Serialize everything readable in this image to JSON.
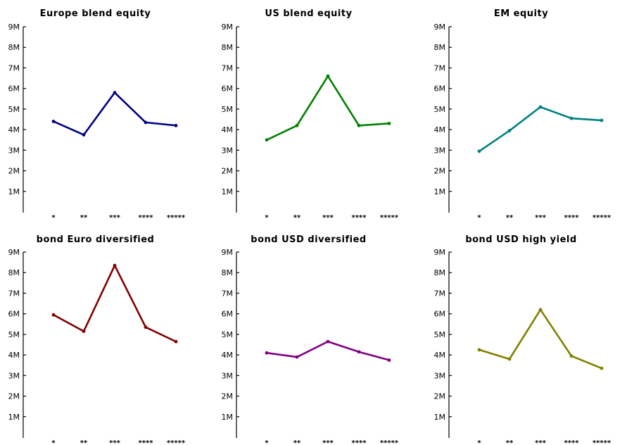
{
  "chart_data": [
    {
      "type": "line",
      "title": "Europe blend equity",
      "categories": [
        "*",
        "**",
        "***",
        "****",
        "*****"
      ],
      "series": [
        {
          "values": [
            4.4,
            3.75,
            5.8,
            4.35,
            4.2
          ],
          "color": "#000080"
        }
      ],
      "ylim": [
        0,
        9
      ],
      "yticks": [
        1,
        2,
        3,
        4,
        5,
        6,
        7,
        8,
        9
      ],
      "ytick_labels": [
        "1M",
        "2M",
        "3M",
        "4M",
        "5M",
        "6M",
        "7M",
        "8M",
        "9M"
      ],
      "xlabel": "",
      "ylabel": "",
      "grid": false
    },
    {
      "type": "line",
      "title": "US blend equity",
      "categories": [
        "*",
        "**",
        "***",
        "****",
        "*****"
      ],
      "series": [
        {
          "values": [
            3.5,
            4.2,
            6.6,
            4.2,
            4.3
          ],
          "color": "#008000"
        }
      ],
      "ylim": [
        0,
        9
      ],
      "yticks": [
        1,
        2,
        3,
        4,
        5,
        6,
        7,
        8,
        9
      ],
      "ytick_labels": [
        "1M",
        "2M",
        "3M",
        "4M",
        "5M",
        "6M",
        "7M",
        "8M",
        "9M"
      ],
      "xlabel": "",
      "ylabel": "",
      "grid": false
    },
    {
      "type": "line",
      "title": "EM equity",
      "categories": [
        "*",
        "**",
        "***",
        "****",
        "*****"
      ],
      "series": [
        {
          "values": [
            2.95,
            3.95,
            5.1,
            4.55,
            4.45
          ],
          "color": "#008080"
        }
      ],
      "ylim": [
        0,
        9
      ],
      "yticks": [
        1,
        2,
        3,
        4,
        5,
        6,
        7,
        8,
        9
      ],
      "ytick_labels": [
        "1M",
        "2M",
        "3M",
        "4M",
        "5M",
        "6M",
        "7M",
        "8M",
        "9M"
      ],
      "xlabel": "",
      "ylabel": "",
      "grid": false
    },
    {
      "type": "line",
      "title": "bond Euro diversified",
      "categories": [
        "*",
        "**",
        "***",
        "****",
        "*****"
      ],
      "series": [
        {
          "values": [
            5.95,
            5.15,
            8.35,
            5.35,
            4.65
          ],
          "color": "#800000"
        }
      ],
      "ylim": [
        0,
        9
      ],
      "yticks": [
        1,
        2,
        3,
        4,
        5,
        6,
        7,
        8,
        9
      ],
      "ytick_labels": [
        "1M",
        "2M",
        "3M",
        "4M",
        "5M",
        "6M",
        "7M",
        "8M",
        "9M"
      ],
      "xlabel": "",
      "ylabel": "",
      "grid": false
    },
    {
      "type": "line",
      "title": "bond USD diversified",
      "categories": [
        "*",
        "**",
        "***",
        "****",
        "*****"
      ],
      "series": [
        {
          "values": [
            4.1,
            3.9,
            4.65,
            4.15,
            3.75
          ],
          "color": "#800080"
        }
      ],
      "ylim": [
        0,
        9
      ],
      "yticks": [
        1,
        2,
        3,
        4,
        5,
        6,
        7,
        8,
        9
      ],
      "ytick_labels": [
        "1M",
        "2M",
        "3M",
        "4M",
        "5M",
        "6M",
        "7M",
        "8M",
        "9M"
      ],
      "xlabel": "",
      "ylabel": "",
      "grid": false
    },
    {
      "type": "line",
      "title": "bond USD high yield",
      "categories": [
        "*",
        "**",
        "***",
        "****",
        "*****"
      ],
      "series": [
        {
          "values": [
            4.25,
            3.8,
            6.2,
            3.95,
            3.35
          ],
          "color": "#808000"
        }
      ],
      "ylim": [
        0,
        9
      ],
      "yticks": [
        1,
        2,
        3,
        4,
        5,
        6,
        7,
        8,
        9
      ],
      "ytick_labels": [
        "1M",
        "2M",
        "3M",
        "4M",
        "5M",
        "6M",
        "7M",
        "8M",
        "9M"
      ],
      "xlabel": "",
      "ylabel": "",
      "grid": false
    }
  ]
}
